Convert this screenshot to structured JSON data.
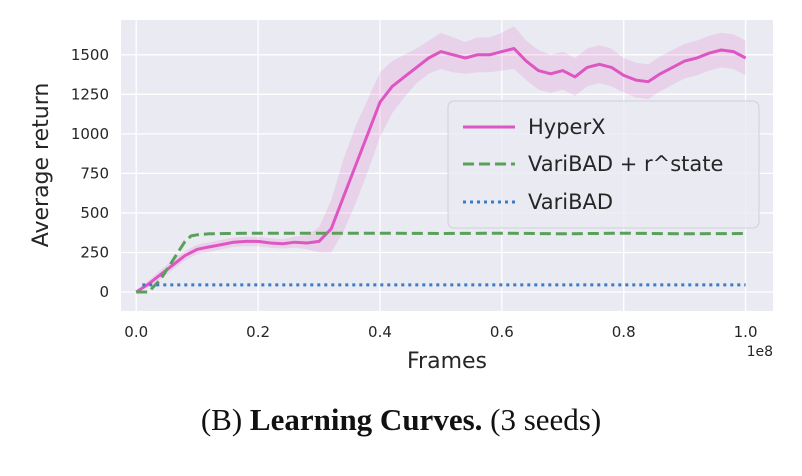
{
  "chart_data": {
    "type": "line",
    "xlabel": "Frames",
    "ylabel": "Average return",
    "x_exponent_label": "1e8",
    "xlim": [
      -0.025,
      1.045
    ],
    "ylim": [
      -120,
      1720
    ],
    "xticks": [
      0.0,
      0.2,
      0.4,
      0.6,
      0.8,
      1.0
    ],
    "xtick_labels": [
      "0.0",
      "0.2",
      "0.4",
      "0.6",
      "0.8",
      "1.0"
    ],
    "yticks": [
      0,
      250,
      500,
      750,
      1000,
      1250,
      1500
    ],
    "ytick_labels": [
      "0",
      "250",
      "500",
      "750",
      "1000",
      "1250",
      "1500"
    ],
    "grid": true,
    "legend_position": "center-right",
    "series": [
      {
        "name": "HyperX",
        "color": "#dd56c2",
        "style": "solid",
        "shaded_band": true,
        "x": [
          0.0,
          0.02,
          0.04,
          0.06,
          0.08,
          0.1,
          0.12,
          0.14,
          0.16,
          0.18,
          0.2,
          0.22,
          0.24,
          0.26,
          0.28,
          0.3,
          0.32,
          0.34,
          0.36,
          0.38,
          0.4,
          0.42,
          0.44,
          0.46,
          0.48,
          0.5,
          0.52,
          0.54,
          0.56,
          0.58,
          0.6,
          0.62,
          0.64,
          0.66,
          0.68,
          0.7,
          0.72,
          0.74,
          0.76,
          0.78,
          0.8,
          0.82,
          0.84,
          0.86,
          0.88,
          0.9,
          0.92,
          0.94,
          0.96,
          0.98,
          1.0
        ],
        "y": [
          0,
          50,
          110,
          170,
          230,
          270,
          285,
          300,
          315,
          320,
          320,
          310,
          305,
          315,
          310,
          320,
          400,
          600,
          800,
          1000,
          1200,
          1300,
          1360,
          1420,
          1480,
          1520,
          1500,
          1480,
          1500,
          1500,
          1520,
          1540,
          1460,
          1400,
          1380,
          1400,
          1360,
          1420,
          1440,
          1420,
          1370,
          1340,
          1330,
          1380,
          1420,
          1460,
          1480,
          1510,
          1530,
          1520,
          1480
        ],
        "lower": [
          0,
          30,
          80,
          140,
          200,
          240,
          255,
          270,
          285,
          290,
          290,
          280,
          275,
          280,
          270,
          250,
          250,
          380,
          560,
          760,
          980,
          1130,
          1230,
          1320,
          1380,
          1410,
          1390,
          1380,
          1390,
          1390,
          1400,
          1410,
          1340,
          1280,
          1260,
          1280,
          1240,
          1300,
          1320,
          1300,
          1260,
          1230,
          1220,
          1270,
          1310,
          1350,
          1370,
          1400,
          1420,
          1410,
          1370
        ],
        "upper": [
          0,
          70,
          140,
          200,
          260,
          300,
          315,
          330,
          345,
          350,
          350,
          340,
          335,
          350,
          360,
          410,
          580,
          840,
          1050,
          1220,
          1390,
          1460,
          1500,
          1540,
          1590,
          1640,
          1610,
          1580,
          1610,
          1610,
          1640,
          1680,
          1590,
          1530,
          1500,
          1520,
          1480,
          1540,
          1560,
          1540,
          1480,
          1450,
          1440,
          1490,
          1530,
          1570,
          1590,
          1620,
          1640,
          1630,
          1590
        ]
      },
      {
        "name": "VariBAD + r^state",
        "color": "#5aa05a",
        "style": "dashed",
        "x": [
          0.0,
          0.02,
          0.04,
          0.06,
          0.08,
          0.09,
          0.1,
          0.12,
          0.15,
          0.2,
          0.3,
          0.4,
          0.5,
          0.6,
          0.7,
          0.8,
          0.9,
          1.0
        ],
        "y": [
          0,
          0,
          80,
          200,
          320,
          355,
          362,
          368,
          370,
          372,
          372,
          372,
          370,
          372,
          368,
          372,
          368,
          370
        ]
      },
      {
        "name": "VariBAD",
        "color": "#3b7cc4",
        "style": "dotted",
        "x": [
          0.01,
          1.0
        ],
        "y": [
          45,
          45
        ]
      }
    ]
  },
  "caption": {
    "prefix": "(B) ",
    "bold": "Learning Curves.",
    "suffix": " (3 seeds)"
  }
}
